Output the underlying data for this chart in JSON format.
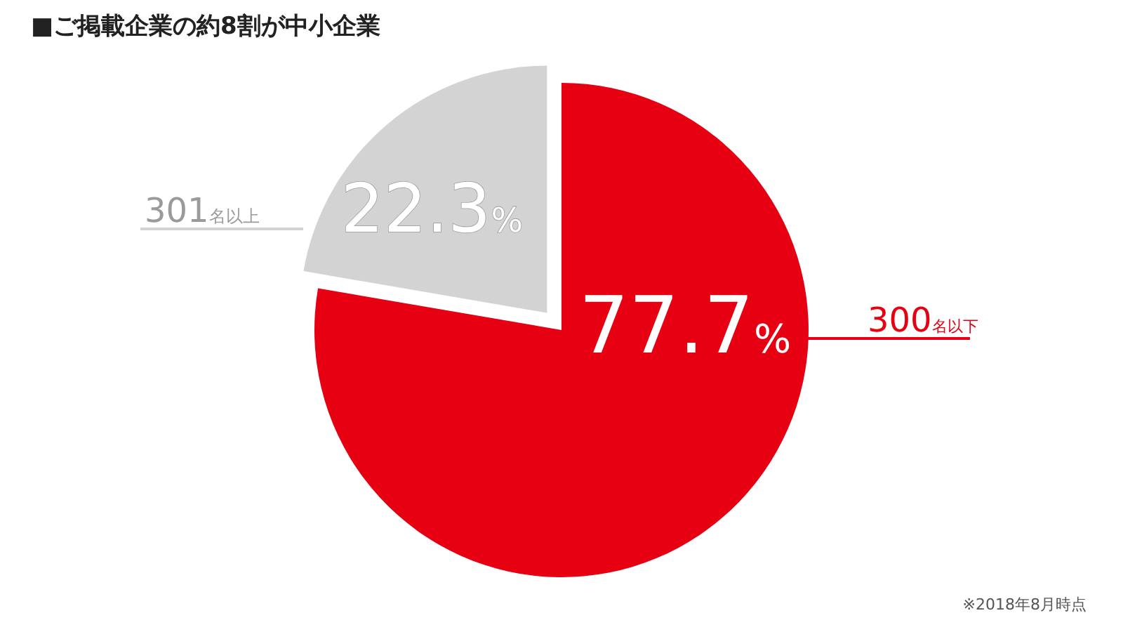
{
  "chart_data": {
    "type": "pie",
    "title": "■ご掲載企業の約8割が中小企業",
    "categories": [
      "300名以下",
      "301名以上"
    ],
    "values": [
      77.7,
      22.3
    ],
    "colors": [
      "#e60012",
      "#d3d3d3"
    ],
    "value_labels": [
      "77.7%",
      "22.3%"
    ],
    "annotations": [
      "※2018年8月時点"
    ]
  }
}
